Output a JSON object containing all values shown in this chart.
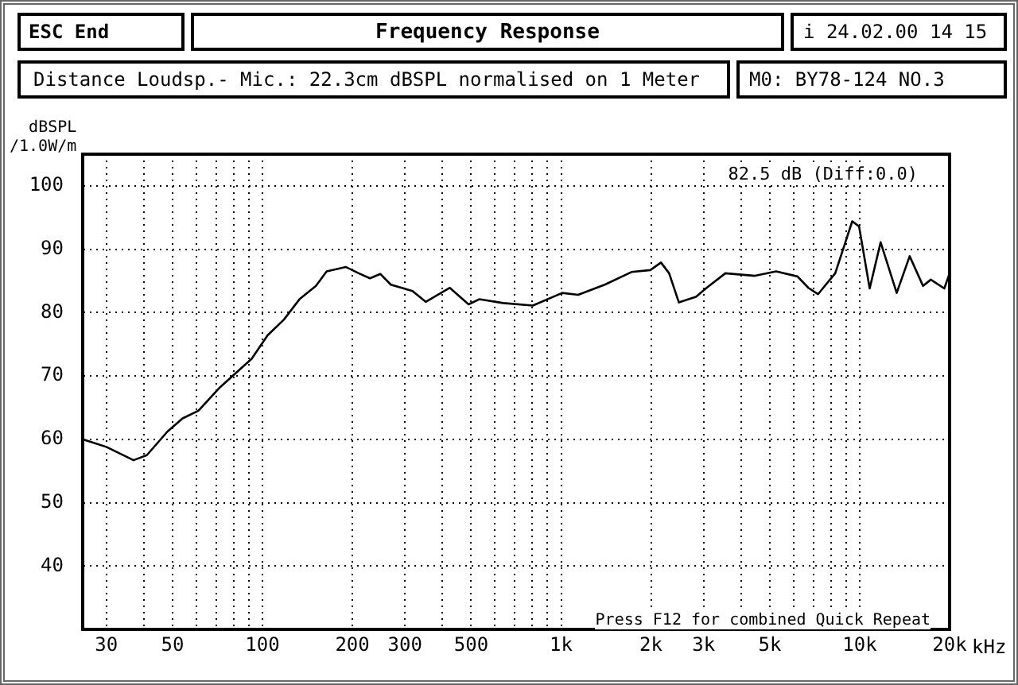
{
  "chart_data": {
    "type": "line",
    "title": "Frequency Response",
    "subtitle": "Distance Loudsp.- Mic.: 22.3cm dBSPL normalised on 1 Meter",
    "ylabel": "dBSPL\n/1.0W/m",
    "xlabel": "kHz",
    "annotations": [
      "ESC End",
      "i 24.02.00 14 15",
      "M0: BY78-124 NO.3",
      "82.5 dB (Diff:0.0)",
      "Press F12 for combined Quick Repeat"
    ],
    "log": "x",
    "grid": true,
    "legend": false,
    "marker": "none",
    "line_style": "solid",
    "xlim": [
      25,
      20000
    ],
    "ylim": [
      30,
      105
    ],
    "xticks": [
      {
        "value": 30,
        "label": "30"
      },
      {
        "value": 40,
        "label": null
      },
      {
        "value": 50,
        "label": "50"
      },
      {
        "value": 60,
        "label": null
      },
      {
        "value": 70,
        "label": null
      },
      {
        "value": 80,
        "label": null
      },
      {
        "value": 90,
        "label": null
      },
      {
        "value": 100,
        "label": "100"
      },
      {
        "value": 200,
        "label": "200"
      },
      {
        "value": 300,
        "label": "300"
      },
      {
        "value": 400,
        "label": null
      },
      {
        "value": 500,
        "label": "500"
      },
      {
        "value": 600,
        "label": null
      },
      {
        "value": 700,
        "label": null
      },
      {
        "value": 800,
        "label": null
      },
      {
        "value": 900,
        "label": null
      },
      {
        "value": 1000,
        "label": "1k"
      },
      {
        "value": 2000,
        "label": "2k"
      },
      {
        "value": 3000,
        "label": "3k"
      },
      {
        "value": 4000,
        "label": null
      },
      {
        "value": 5000,
        "label": "5k"
      },
      {
        "value": 6000,
        "label": null
      },
      {
        "value": 7000,
        "label": null
      },
      {
        "value": 8000,
        "label": null
      },
      {
        "value": 9000,
        "label": null
      },
      {
        "value": 10000,
        "label": "10k"
      },
      {
        "value": 20000,
        "label": "20k"
      }
    ],
    "yticks": [
      40,
      50,
      60,
      70,
      80,
      90,
      100
    ],
    "series": [
      {
        "color": "#000000",
        "x": [
          25,
          30,
          37,
          41,
          48,
          54,
          61,
          72,
          92,
          104,
          118,
          133,
          151,
          164,
          190,
          210,
          229,
          248,
          269,
          318,
          352,
          424,
          490,
          532,
          640,
          804,
          1009,
          1140,
          1400,
          1720,
          1990,
          2160,
          2300,
          2480,
          2830,
          3070,
          3550,
          4460,
          5250,
          6190,
          6730,
          7250,
          8280,
          9440,
          9950,
          10800,
          11750,
          13300,
          14700,
          16300,
          17300,
          19200,
          20000
        ],
        "values": [
          60,
          58.8,
          56.7,
          57.5,
          61.2,
          63.3,
          64.5,
          68.2,
          72.7,
          76.4,
          78.9,
          82.1,
          84.2,
          86.5,
          87.2,
          86.2,
          85.4,
          86.1,
          84.4,
          83.4,
          81.7,
          83.9,
          81.3,
          82.1,
          81.5,
          81.1,
          83.1,
          82.8,
          84.4,
          86.4,
          86.7,
          87.9,
          86.2,
          81.6,
          82.5,
          83.9,
          86.2,
          85.8,
          86.5,
          85.7,
          83.9,
          82.9,
          86.2,
          94.4,
          93.6,
          83.8,
          91.1,
          83.1,
          88.9,
          84.2,
          85.2,
          83.8,
          86.2
        ]
      }
    ]
  }
}
